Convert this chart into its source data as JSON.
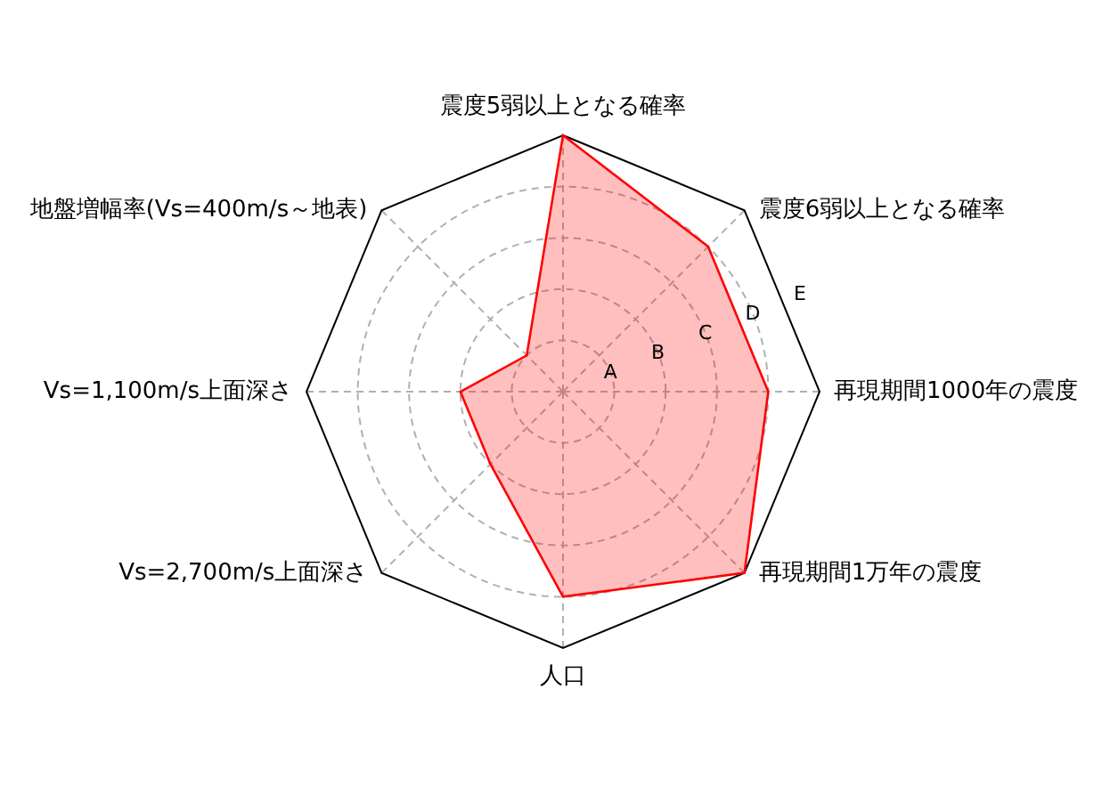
{
  "chart_data": {
    "type": "radar",
    "categories": [
      "震度5弱以上となる確率",
      "震度6弱以上となる確率",
      "再現期間1000年の震度",
      "再現期間1万年の震度",
      "人口",
      "Vs=2,700m/s上面深さ",
      "Vs=1,100m/s上面深さ",
      "地盤増幅率(Vs=400m/s～地表)"
    ],
    "series": [
      {
        "color": "#ff0000",
        "values": [
          5,
          4,
          4,
          5,
          4,
          2,
          2,
          1
        ]
      }
    ],
    "ylim": [
      0,
      5
    ],
    "yticks": [
      {
        "value": 1,
        "label": "A"
      },
      {
        "value": 2,
        "label": "B"
      },
      {
        "value": 3,
        "label": "C"
      },
      {
        "value": 4,
        "label": "D"
      },
      {
        "value": 5,
        "label": "E"
      }
    ],
    "grid": true
  }
}
